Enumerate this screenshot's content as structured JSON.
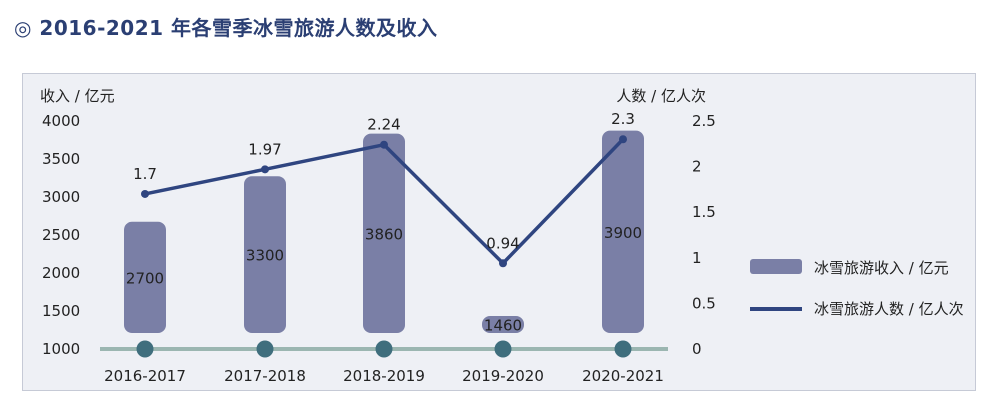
{
  "header": {
    "title": "◎ 2016-2021 年各雪季冰雪旅游人数及收入"
  },
  "colors": {
    "bar": "#7a7fa6",
    "line": "#2f4580",
    "baseline": "#9bb6b1",
    "marker": "#3f6e7d",
    "panel": "#eef0f5",
    "title": "#2b3f73"
  },
  "chart_data": {
    "type": "bar",
    "categories": [
      "2016-2017",
      "2017-2018",
      "2018-2019",
      "2019-2020",
      "2020-2021"
    ],
    "series": [
      {
        "name": "冰雪旅游收入 / 亿元",
        "type": "bar",
        "axis": "left",
        "values": [
          2700,
          3300,
          3860,
          1460,
          3900
        ],
        "labels": [
          "2700",
          "3300",
          "3860",
          "1460",
          "3900"
        ]
      },
      {
        "name": "冰雪旅游人数 / 亿人次",
        "type": "line",
        "axis": "right",
        "values": [
          1.7,
          1.97,
          2.24,
          0.94,
          2.3
        ],
        "labels": [
          "1.7",
          "1.97",
          "2.24",
          "0.94",
          "2.3"
        ]
      }
    ],
    "ylabel_left": "收入 / 亿元",
    "ylabel_right": "人数 / 亿人次",
    "ylim_left": [
      1000,
      4000
    ],
    "ylim_right": [
      0,
      2.5
    ],
    "yticks_left": [
      "4000",
      "3500",
      "3000",
      "2500",
      "2000",
      "1500",
      "1000"
    ],
    "yticks_right": [
      "2.5",
      "2",
      "1.5",
      "1",
      "0.5",
      "0"
    ],
    "legend_position": "right",
    "grid": false
  }
}
